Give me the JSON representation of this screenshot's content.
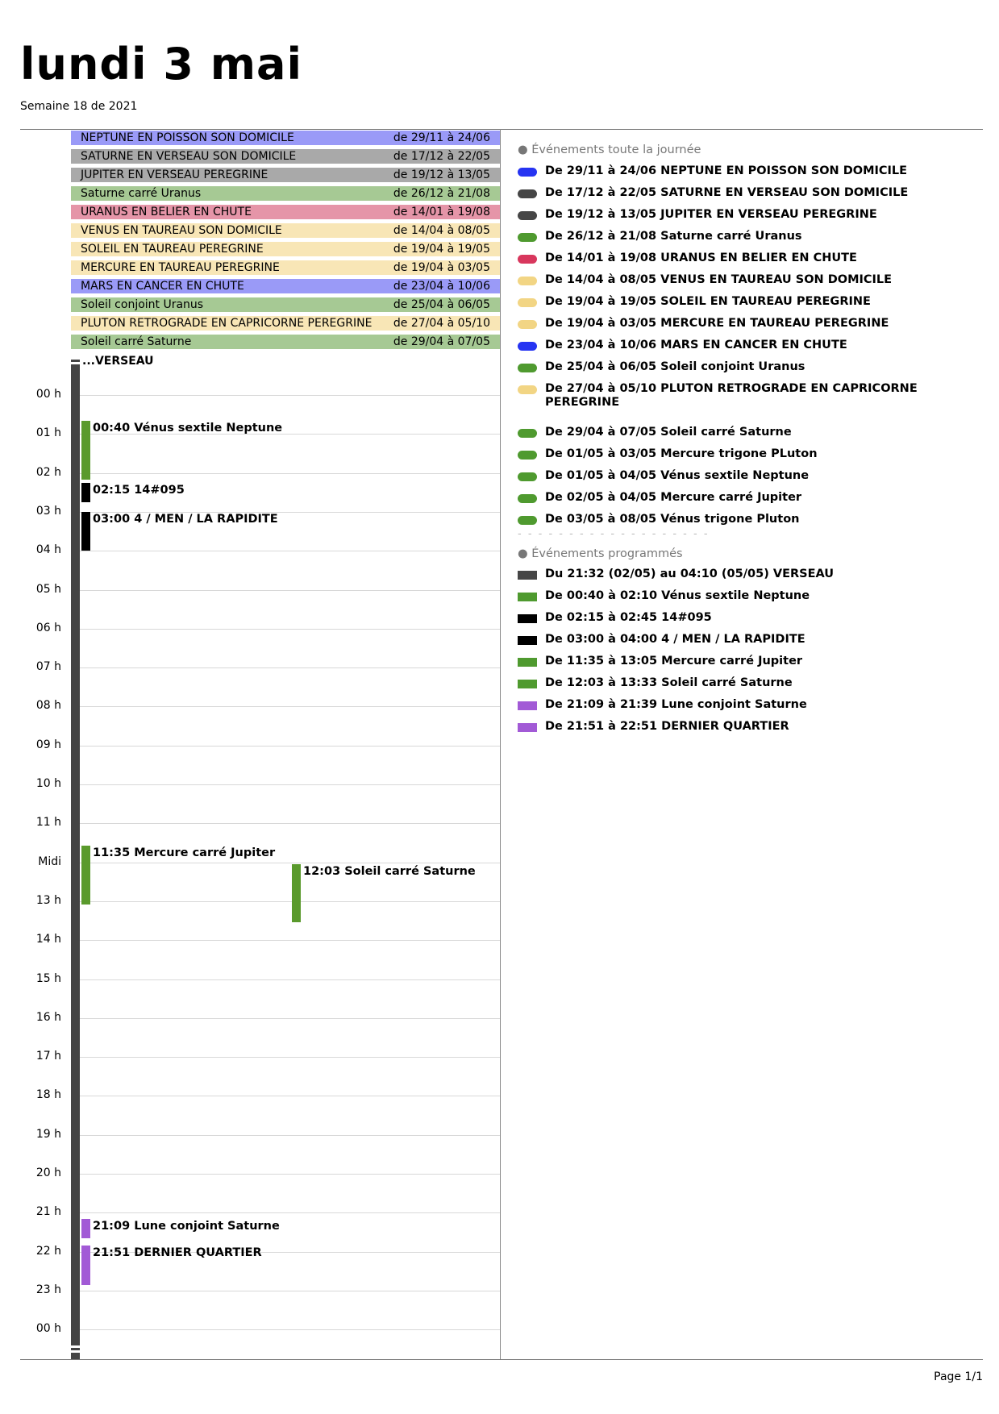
{
  "header": {
    "title": "lundi 3 mai",
    "subtitle": "Semaine 18 de 2021"
  },
  "allday_bars": [
    {
      "name": "NEPTUNE EN POISSON SON DOMICILE",
      "dates": "de 29/11 à 24/06",
      "color": "#9a9af7"
    },
    {
      "name": "SATURNE EN VERSEAU SON DOMICILE",
      "dates": "de 17/12 à 22/05",
      "color": "#a9a9a9"
    },
    {
      "name": "JUPITER EN VERSEAU PEREGRINE",
      "dates": "de 19/12 à 13/05",
      "color": "#a9a9a9"
    },
    {
      "name": "Saturne carré Uranus",
      "dates": "de 26/12 à 21/08",
      "color": "#a6c994"
    },
    {
      "name": "URANUS EN BELIER EN CHUTE",
      "dates": "de 14/01 à 19/08",
      "color": "#e595a8"
    },
    {
      "name": "VENUS EN TAUREAU SON DOMICILE",
      "dates": "de 14/04 à 08/05",
      "color": "#f8e6b6"
    },
    {
      "name": "SOLEIL EN TAUREAU PEREGRINE",
      "dates": "de 19/04 à 19/05",
      "color": "#f8e6b6"
    },
    {
      "name": "MERCURE EN TAUREAU PEREGRINE",
      "dates": "de 19/04 à 03/05",
      "color": "#f8e6b6"
    },
    {
      "name": "MARS EN CANCER EN CHUTE",
      "dates": "de 23/04 à 10/06",
      "color": "#9a9af7"
    },
    {
      "name": "Soleil conjoint Uranus",
      "dates": "de 25/04 à 06/05",
      "color": "#a6c994"
    },
    {
      "name": "PLUTON RETROGRADE EN CAPRICORNE PEREGRINE",
      "dates": "de 27/04 à 05/10",
      "color": "#f8e6b6"
    },
    {
      "name": "Soleil carré Saturne",
      "dates": "de 29/04 à 07/05",
      "color": "#a6c994"
    }
  ],
  "timeline": {
    "continuation_label": "...VERSEAU",
    "hours": [
      "00 h",
      "01 h",
      "02 h",
      "03 h",
      "04 h",
      "05 h",
      "06 h",
      "07 h",
      "08 h",
      "09 h",
      "10 h",
      "11 h",
      "Midi",
      "13 h",
      "14 h",
      "15 h",
      "16 h",
      "17 h",
      "18 h",
      "19 h",
      "20 h",
      "21 h",
      "22 h",
      "23 h",
      "00 h"
    ],
    "events": [
      {
        "label": "00:40 Vénus sextile Neptune",
        "start_h": 0.6667,
        "end_h": 2.1667,
        "lane": 0,
        "color": "#5a9a2c"
      },
      {
        "label": "02:15 14#095",
        "start_h": 2.25,
        "end_h": 2.75,
        "lane": 0,
        "color": "#000000"
      },
      {
        "label": "03:00 4 / MEN / LA RAPIDITE",
        "start_h": 3.0,
        "end_h": 4.0,
        "lane": 0,
        "color": "#000000"
      },
      {
        "label": "11:35 Mercure carré Jupiter",
        "start_h": 11.5833,
        "end_h": 13.0833,
        "lane": 0,
        "color": "#5a9a2c"
      },
      {
        "label": "12:03 Soleil carré Saturne",
        "start_h": 12.05,
        "end_h": 13.55,
        "lane": 1,
        "color": "#5a9a2c"
      },
      {
        "label": "21:09 Lune conjoint Saturne",
        "start_h": 21.15,
        "end_h": 21.65,
        "lane": 0,
        "color": "#a25ad6"
      },
      {
        "label": "21:51 DERNIER QUARTIER",
        "start_h": 21.85,
        "end_h": 22.85,
        "lane": 0,
        "color": "#a25ad6"
      }
    ]
  },
  "sidebar": {
    "allday_heading": "● Événements toute la journée",
    "allday_items": [
      {
        "text": "De 29/11 à 24/06 NEPTUNE EN POISSON SON DOMICILE",
        "color": "#2634f2"
      },
      {
        "text": "De 17/12 à 22/05 SATURNE EN VERSEAU SON DOMICILE",
        "color": "#464646"
      },
      {
        "text": "De 19/12 à 13/05 JUPITER EN VERSEAU PEREGRINE",
        "color": "#464646"
      },
      {
        "text": "De 26/12 à 21/08 Saturne carré Uranus",
        "color": "#4f9a2f"
      },
      {
        "text": "De 14/01 à 19/08 URANUS EN BELIER EN CHUTE",
        "color": "#d8375d"
      },
      {
        "text": "De 14/04 à 08/05 VENUS EN TAUREAU SON DOMICILE",
        "color": "#f2d584"
      },
      {
        "text": "De 19/04 à 19/05 SOLEIL EN TAUREAU PEREGRINE",
        "color": "#f2d584"
      },
      {
        "text": "De 19/04 à 03/05 MERCURE EN TAUREAU PEREGRINE",
        "color": "#f2d584"
      },
      {
        "text": "De 23/04 à 10/06 MARS EN CANCER EN CHUTE",
        "color": "#2634f2"
      },
      {
        "text": "De 25/04 à 06/05 Soleil conjoint Uranus",
        "color": "#4f9a2f"
      },
      {
        "text": "De 27/04 à 05/10 PLUTON RETROGRADE EN CAPRICORNE PEREGRINE",
        "color": "#f2d584"
      },
      {
        "text": "De 29/04 à 07/05 Soleil carré Saturne",
        "color": "#4f9a2f"
      },
      {
        "text": "De 01/05 à 03/05 Mercure trigone PLuton",
        "color": "#4f9a2f"
      },
      {
        "text": "De 01/05 à 04/05 Vénus sextile Neptune",
        "color": "#4f9a2f"
      },
      {
        "text": "De 02/05 à 04/05 Mercure carré Jupiter",
        "color": "#4f9a2f"
      },
      {
        "text": "De 03/05 à 08/05 Vénus trigone Pluton",
        "color": "#4f9a2f"
      }
    ],
    "divider": "- - - - - - - - - - - - - - - - - - -",
    "scheduled_heading": "● Événements programmés",
    "scheduled_items": [
      {
        "text": "Du 21:32 (02/05) au 04:10 (05/05) VERSEAU",
        "color": "#464646"
      },
      {
        "text": "De 00:40 à 02:10 Vénus sextile Neptune",
        "color": "#4f9a2f"
      },
      {
        "text": "De 02:15 à 02:45 14#095",
        "color": "#000000"
      },
      {
        "text": "De 03:00 à 04:00 4 / MEN / LA RAPIDITE",
        "color": "#000000"
      },
      {
        "text": "De 11:35 à 13:05 Mercure carré Jupiter",
        "color": "#4f9a2f"
      },
      {
        "text": "De 12:03 à 13:33 Soleil carré Saturne",
        "color": "#4f9a2f"
      },
      {
        "text": "De 21:09 à 21:39 Lune conjoint Saturne",
        "color": "#a25ad6"
      },
      {
        "text": "De 21:51 à 22:51 DERNIER QUARTIER",
        "color": "#a25ad6"
      }
    ]
  },
  "footer": {
    "page": "Page 1/1"
  }
}
